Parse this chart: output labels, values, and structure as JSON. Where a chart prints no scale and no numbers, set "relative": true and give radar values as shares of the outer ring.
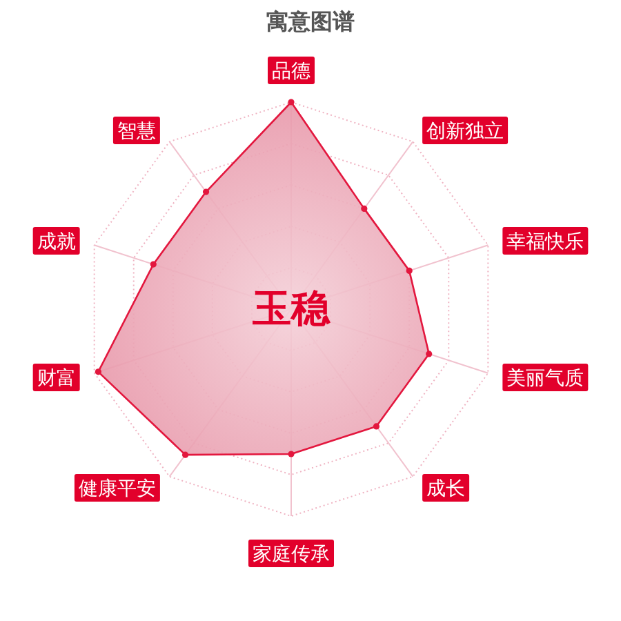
{
  "chart_data": {
    "type": "radar",
    "title": "寓意图谱",
    "categories": [
      "品德",
      "创新独立",
      "幸福快乐",
      "美丽气质",
      "成长",
      "家庭传承",
      "健康平安",
      "财富",
      "成就",
      "智慧"
    ],
    "relative": true,
    "grid": true,
    "marker": "circle",
    "series": [
      {
        "color": "#e3173e",
        "values": [
          1,
          0.6,
          0.6,
          0.7,
          0.7,
          0.7,
          0.87,
          0.98,
          0.7,
          0.7
        ]
      }
    ],
    "annotations": [
      "玉稳"
    ]
  }
}
